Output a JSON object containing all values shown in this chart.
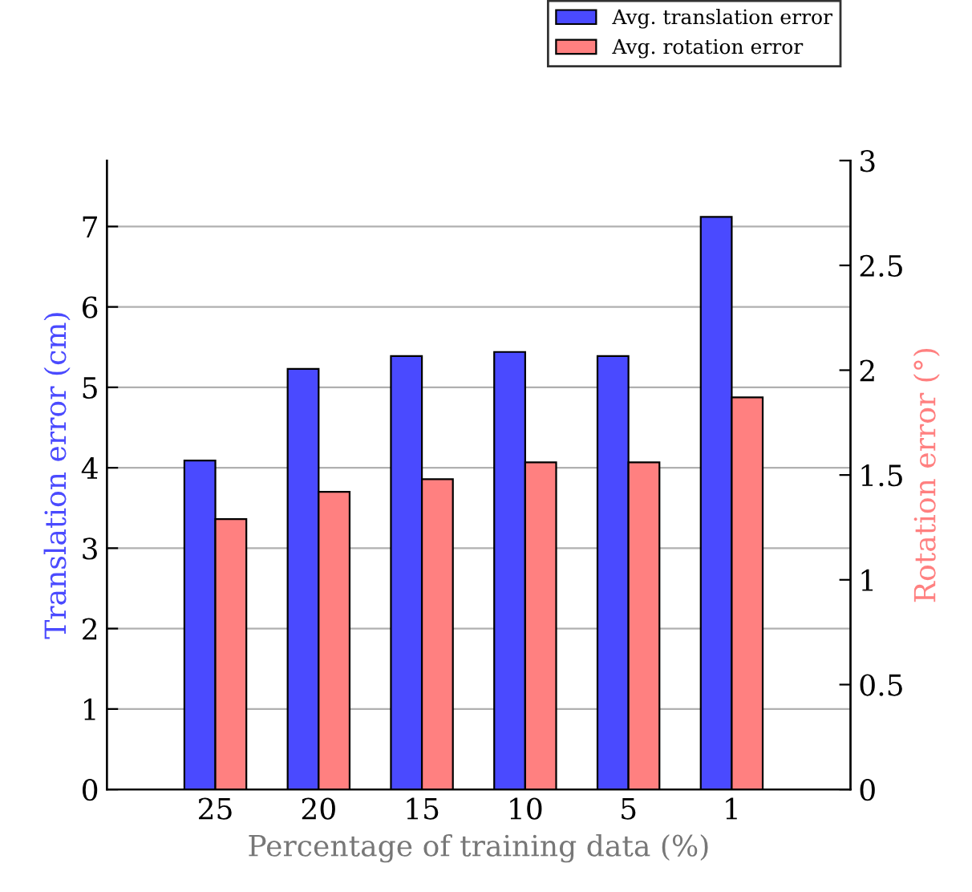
{
  "chart_data": {
    "type": "bar",
    "xlabel": "Percentage of training data (%)",
    "ylabel": "Translation error (cm)",
    "y2label": "Rotation error (°)",
    "categories": [
      "25",
      "20",
      "15",
      "10",
      "5",
      "1"
    ],
    "series": [
      {
        "name": "Avg. translation error",
        "color": "#4a4aff",
        "values": [
          4.09,
          5.23,
          5.39,
          5.44,
          5.39,
          7.12
        ]
      },
      {
        "name": "Avg. rotation error",
        "color": "#ff8080",
        "axis": "y2",
        "values": [
          1.29,
          1.42,
          1.48,
          1.56,
          1.56,
          1.87
        ]
      }
    ],
    "ylim": [
      0,
      7.82
    ],
    "yticks": [
      0,
      1,
      2,
      3,
      4,
      5,
      6,
      7
    ],
    "y2lim": [
      0,
      3
    ],
    "y2ticks": [
      0,
      0.5,
      1,
      1.5,
      2,
      2.5,
      3
    ],
    "grid": "y",
    "legend": "top right"
  }
}
